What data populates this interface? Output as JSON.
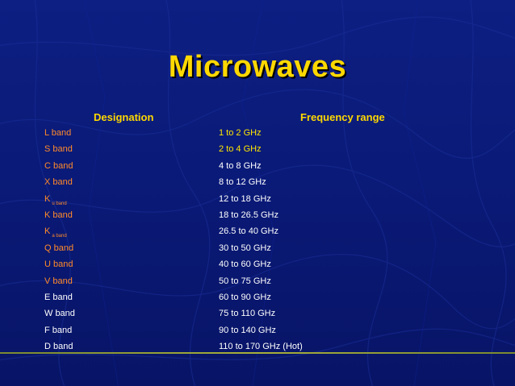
{
  "slide": {
    "title": "Microwaves",
    "header_designation": "Designation",
    "header_frequency": "Frequency range"
  },
  "rows": [
    {
      "band": "L band",
      "sub": "",
      "freq": "1 to 2 GHz",
      "band_color": "#ff8a2a",
      "freq_color": "#ffe600"
    },
    {
      "band": "S band",
      "sub": "",
      "freq": "2 to 4 GHz",
      "band_color": "#ff8a2a",
      "freq_color": "#ffe600"
    },
    {
      "band": "C band",
      "sub": "",
      "freq": "4 to 8 GHz",
      "band_color": "#ff8a2a",
      "freq_color": "#ffffff"
    },
    {
      "band": "X band",
      "sub": "",
      "freq": "8 to 12 GHz",
      "band_color": "#ff8a2a",
      "freq_color": "#ffffff"
    },
    {
      "band": "K",
      "sub": "u band",
      "freq": "12 to 18 GHz",
      "band_color": "#ff8a2a",
      "freq_color": "#ffffff"
    },
    {
      "band": "K band",
      "sub": "",
      "freq": "18 to 26.5 GHz",
      "band_color": "#ff8a2a",
      "freq_color": "#ffffff"
    },
    {
      "band": "K",
      "sub": "a band",
      "freq": "26.5 to 40 GHz",
      "band_color": "#ff8a2a",
      "freq_color": "#ffffff"
    },
    {
      "band": "Q band",
      "sub": "",
      "freq": "30 to 50 GHz",
      "band_color": "#ff8a2a",
      "freq_color": "#ffffff"
    },
    {
      "band": "U band",
      "sub": "",
      "freq": "40 to 60 GHz",
      "band_color": "#ff8a2a",
      "freq_color": "#ffffff"
    },
    {
      "band": "V band",
      "sub": "",
      "freq": "50 to 75 GHz",
      "band_color": "#ff8a2a",
      "freq_color": "#ffffff"
    },
    {
      "band": "E band",
      "sub": "",
      "freq": "60 to 90 GHz",
      "band_color": "#ffffff",
      "freq_color": "#ffffff"
    },
    {
      "band": "W band",
      "sub": "",
      "freq": "75 to 110 GHz",
      "band_color": "#ffffff",
      "freq_color": "#ffffff"
    },
    {
      "band": "F band",
      "sub": "",
      "freq": "90 to 140 GHz",
      "band_color": "#ffffff",
      "freq_color": "#ffffff"
    },
    {
      "band": "D band",
      "sub": "",
      "freq": "110 to 170 GHz (Hot)",
      "band_color": "#ffffff",
      "freq_color": "#ffffff"
    }
  ],
  "colors": {
    "background": "#0a1a78",
    "title": "#ffd800",
    "accent_orange": "#ff8a2a",
    "accent_line": "#a8b03a"
  }
}
